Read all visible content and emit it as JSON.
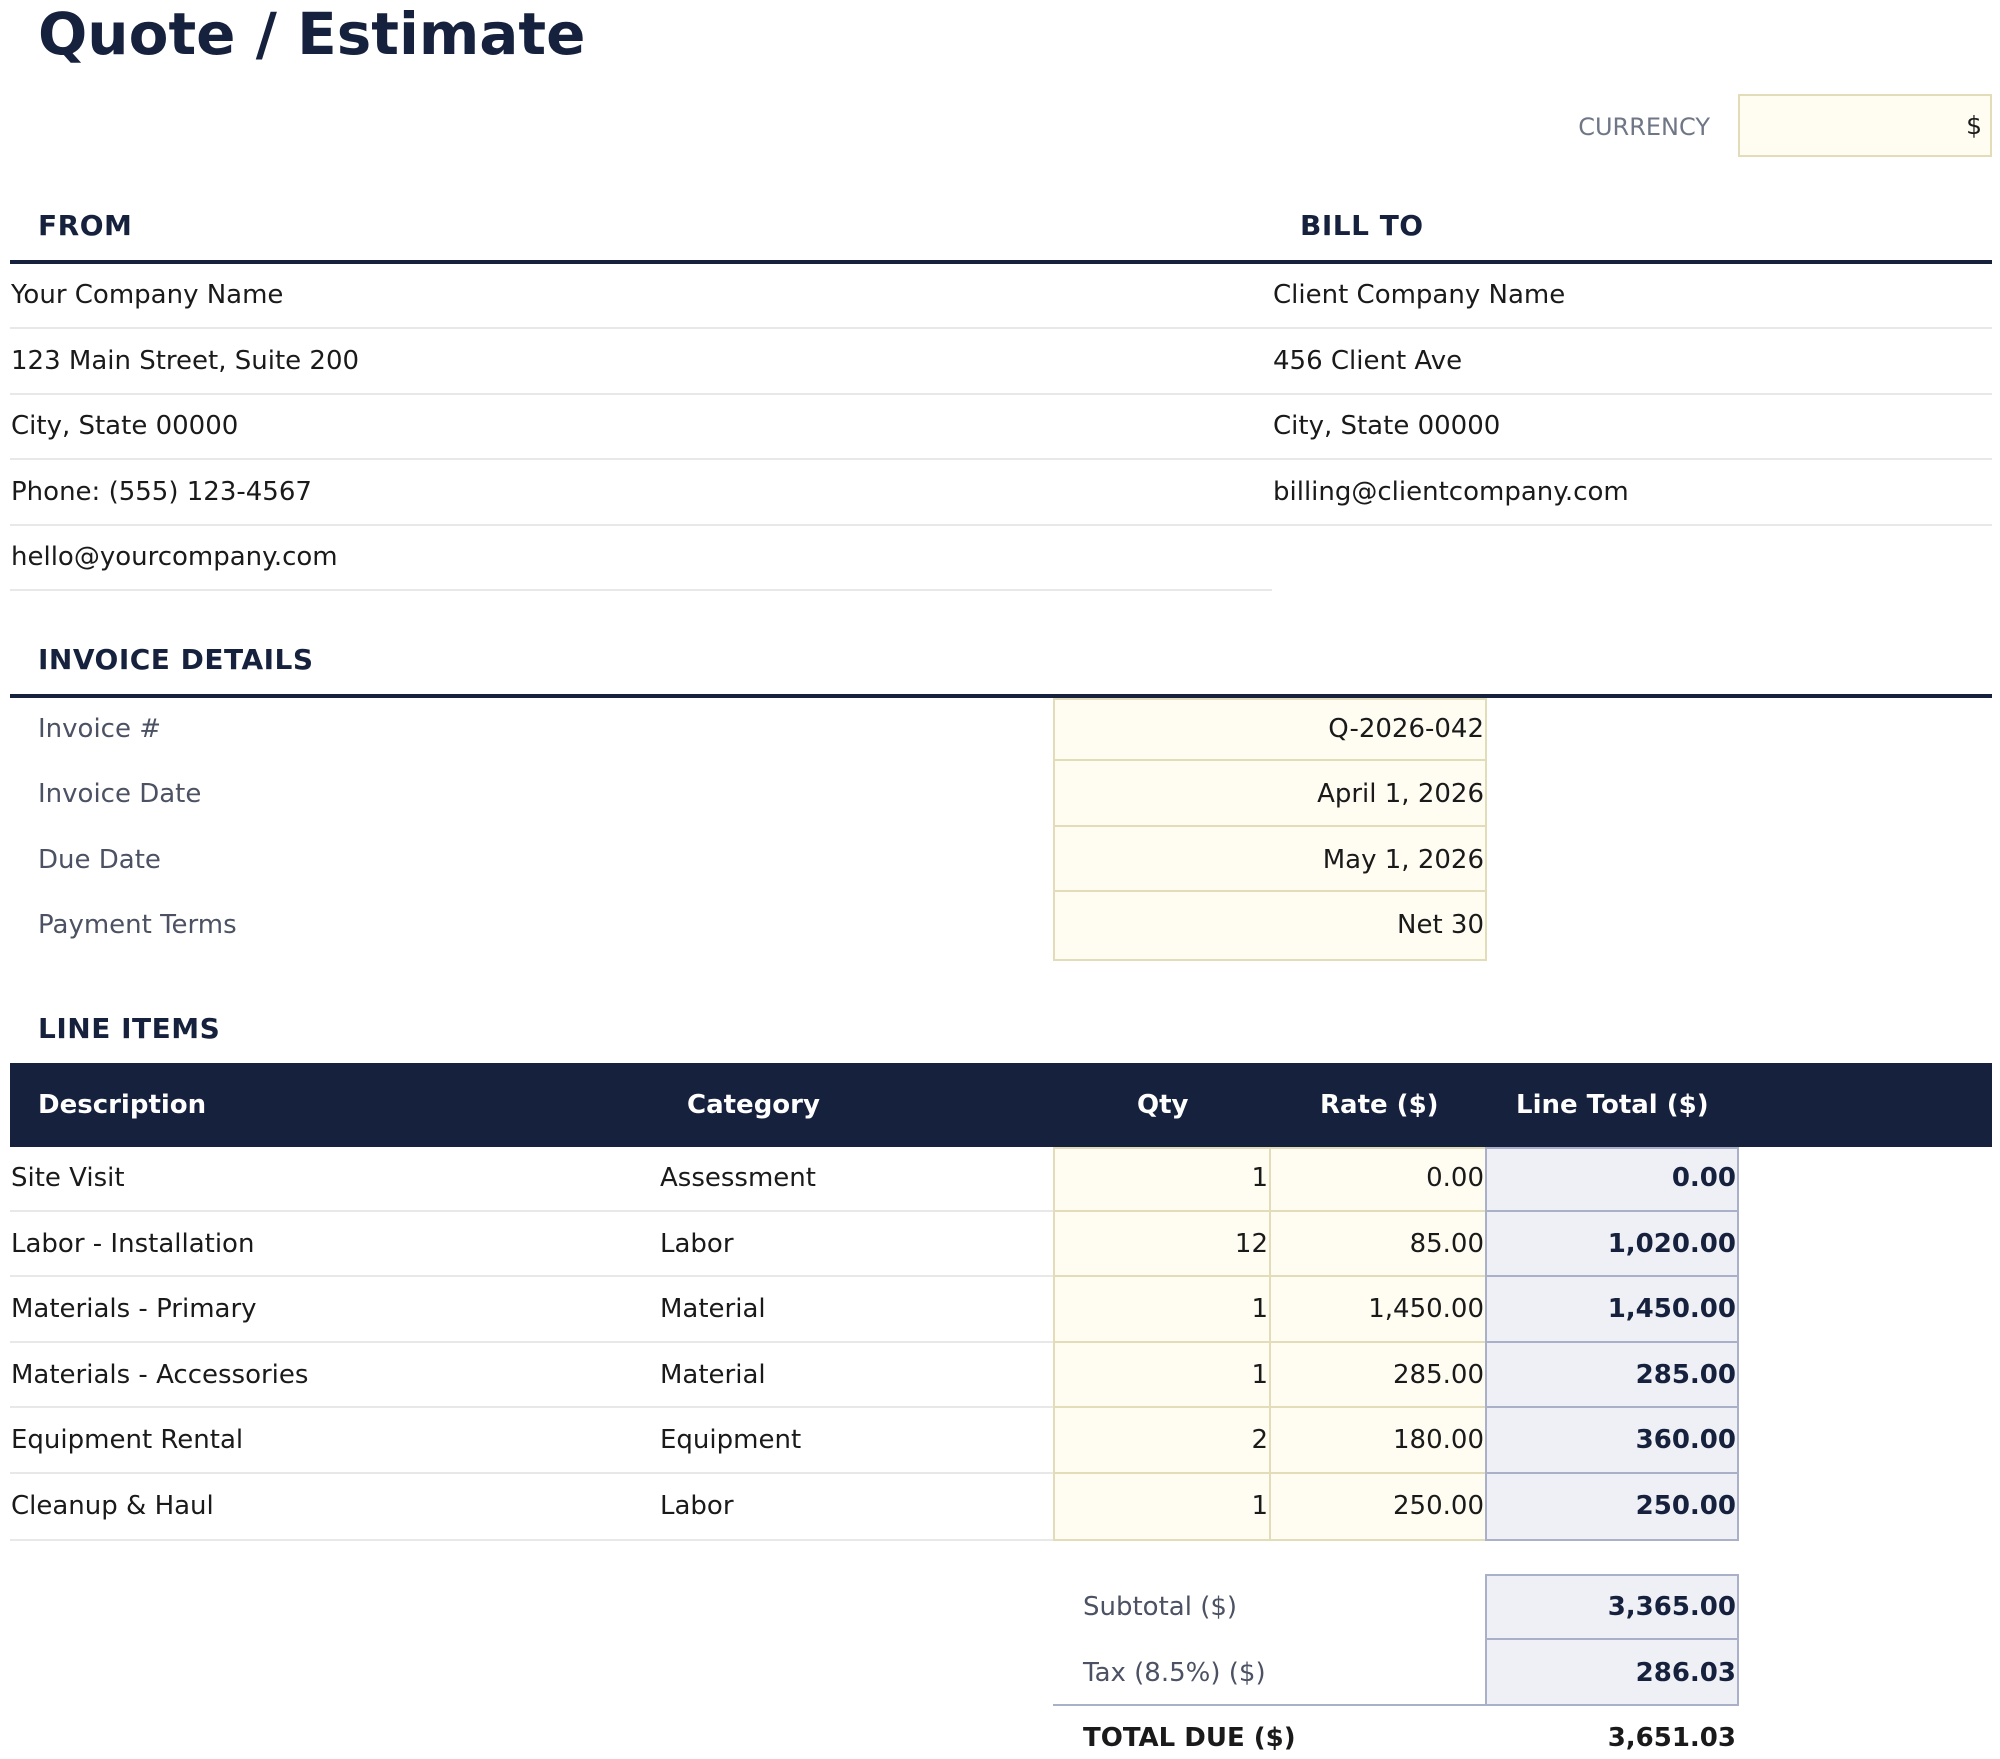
{
  "title": "Quote / Estimate",
  "currency": {
    "label": "CURRENCY",
    "value": "$"
  },
  "from": {
    "heading": "FROM",
    "lines": [
      "Your Company Name",
      "123 Main Street, Suite 200",
      "City, State 00000",
      "Phone: (555) 123-4567",
      "hello@yourcompany.com"
    ]
  },
  "bill_to": {
    "heading": "BILL TO",
    "lines": [
      "Client Company Name",
      "456 Client Ave",
      "City, State 00000",
      "billing@clientcompany.com"
    ]
  },
  "invoice_details": {
    "heading": "INVOICE DETAILS",
    "rows": [
      {
        "label": "Invoice #",
        "value": "Q-2026-042"
      },
      {
        "label": "Invoice Date",
        "value": "April 1, 2026"
      },
      {
        "label": "Due Date",
        "value": "May 1, 2026"
      },
      {
        "label": "Payment Terms",
        "value": "Net 30"
      }
    ]
  },
  "line_items": {
    "heading": "LINE ITEMS",
    "columns": [
      "Description",
      "Category",
      "Qty",
      "Rate ($)",
      "Line Total ($)"
    ],
    "rows": [
      {
        "description": "Site Visit",
        "category": "Assessment",
        "qty": "1",
        "rate": "0.00",
        "total": "0.00"
      },
      {
        "description": "Labor - Installation",
        "category": "Labor",
        "qty": "12",
        "rate": "85.00",
        "total": "1,020.00"
      },
      {
        "description": "Materials - Primary",
        "category": "Material",
        "qty": "1",
        "rate": "1,450.00",
        "total": "1,450.00"
      },
      {
        "description": "Materials - Accessories",
        "category": "Material",
        "qty": "1",
        "rate": "285.00",
        "total": "285.00"
      },
      {
        "description": "Equipment Rental",
        "category": "Equipment",
        "qty": "2",
        "rate": "180.00",
        "total": "360.00"
      },
      {
        "description": "Cleanup & Haul",
        "category": "Labor",
        "qty": "1",
        "rate": "250.00",
        "total": "250.00"
      }
    ]
  },
  "totals": {
    "subtotal_label": "Subtotal ($)",
    "subtotal": "3,365.00",
    "tax_label": "Tax (8.5%) ($)",
    "tax": "286.03",
    "total_label": "TOTAL DUE ($)",
    "total": "3,651.03"
  }
}
